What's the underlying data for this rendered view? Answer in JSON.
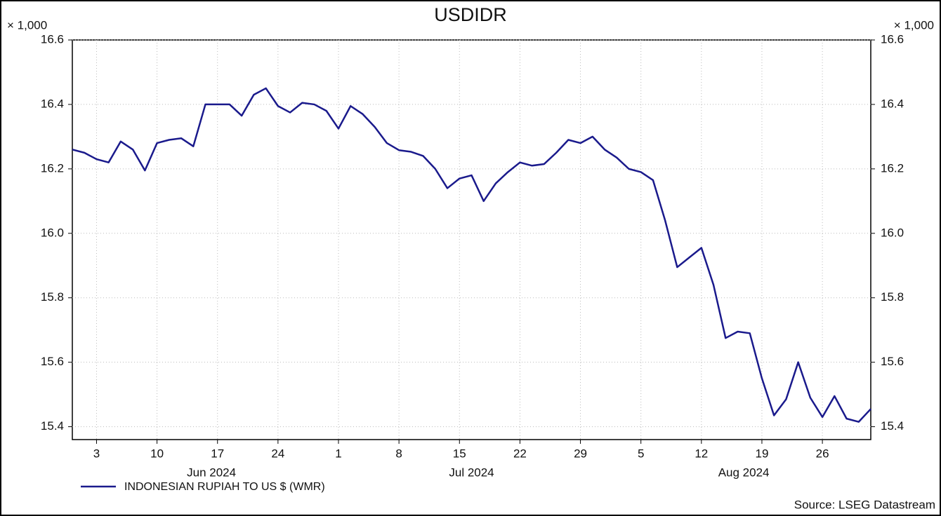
{
  "chart_data": {
    "type": "line",
    "title": "USDIDR",
    "y_unit_label": "× 1,000",
    "x": [
      "2024-05-30",
      "2024-05-31",
      "2024-06-03",
      "2024-06-04",
      "2024-06-05",
      "2024-06-06",
      "2024-06-07",
      "2024-06-10",
      "2024-06-11",
      "2024-06-12",
      "2024-06-13",
      "2024-06-14",
      "2024-06-17",
      "2024-06-18",
      "2024-06-19",
      "2024-06-20",
      "2024-06-21",
      "2024-06-24",
      "2024-06-25",
      "2024-06-26",
      "2024-06-27",
      "2024-06-28",
      "2024-07-01",
      "2024-07-02",
      "2024-07-03",
      "2024-07-04",
      "2024-07-05",
      "2024-07-08",
      "2024-07-09",
      "2024-07-10",
      "2024-07-11",
      "2024-07-12",
      "2024-07-15",
      "2024-07-16",
      "2024-07-17",
      "2024-07-18",
      "2024-07-19",
      "2024-07-22",
      "2024-07-23",
      "2024-07-24",
      "2024-07-25",
      "2024-07-26",
      "2024-07-29",
      "2024-07-30",
      "2024-07-31",
      "2024-08-01",
      "2024-08-02",
      "2024-08-05",
      "2024-08-06",
      "2024-08-07",
      "2024-08-08",
      "2024-08-09",
      "2024-08-12",
      "2024-08-13",
      "2024-08-14",
      "2024-08-15",
      "2024-08-16",
      "2024-08-19",
      "2024-08-20",
      "2024-08-21",
      "2024-08-22",
      "2024-08-23",
      "2024-08-26",
      "2024-08-27",
      "2024-08-28",
      "2024-08-29",
      "2024-08-30"
    ],
    "series": [
      {
        "name": "INDONESIAN RUPIAH TO US $ (WMR)",
        "color": "#1a1a8c",
        "values": [
          16.26,
          16.25,
          16.23,
          16.22,
          16.285,
          16.26,
          16.195,
          16.28,
          16.29,
          16.295,
          16.27,
          16.4,
          16.4,
          16.4,
          16.365,
          16.43,
          16.45,
          16.395,
          16.375,
          16.405,
          16.4,
          16.38,
          16.325,
          16.395,
          16.37,
          16.33,
          16.28,
          16.258,
          16.253,
          16.24,
          16.2,
          16.14,
          16.17,
          16.18,
          16.1,
          16.155,
          16.19,
          16.22,
          16.21,
          16.215,
          16.25,
          16.29,
          16.28,
          16.3,
          16.26,
          16.235,
          16.2,
          16.19,
          16.165,
          16.04,
          15.895,
          15.925,
          15.955,
          15.84,
          15.675,
          15.695,
          15.69,
          15.55,
          15.435,
          15.485,
          15.6,
          15.49,
          15.43,
          15.495,
          15.425,
          15.415,
          15.455
        ]
      }
    ],
    "ylim": [
      15.36,
      16.6
    ],
    "yticks": [
      15.4,
      15.6,
      15.8,
      {
        "value": 16,
        "label": "16.0"
      },
      16.2,
      16.4,
      16.6
    ],
    "xticks": [
      {
        "value": "2024-06-03",
        "label": "3"
      },
      {
        "value": "2024-06-10",
        "label": "10"
      },
      {
        "value": "2024-06-17",
        "label": "17"
      },
      {
        "value": "2024-06-24",
        "label": "24"
      },
      {
        "value": "2024-07-01",
        "label": "1"
      },
      {
        "value": "2024-07-08",
        "label": "8"
      },
      {
        "value": "2024-07-15",
        "label": "15"
      },
      {
        "value": "2024-07-22",
        "label": "22"
      },
      {
        "value": "2024-07-29",
        "label": "29"
      },
      {
        "value": "2024-08-05",
        "label": "5"
      },
      {
        "value": "2024-08-12",
        "label": "12"
      },
      {
        "value": "2024-08-19",
        "label": "19"
      },
      {
        "value": "2024-08-26",
        "label": "26"
      }
    ],
    "x_periods": [
      {
        "value": "2024-06",
        "label": "Jun 2024"
      },
      {
        "value": "2024-07",
        "label": "Jul 2024"
      },
      {
        "value": "2024-08",
        "label": "Aug 2024"
      }
    ],
    "grid": true,
    "source": "Source: LSEG Datastream"
  }
}
